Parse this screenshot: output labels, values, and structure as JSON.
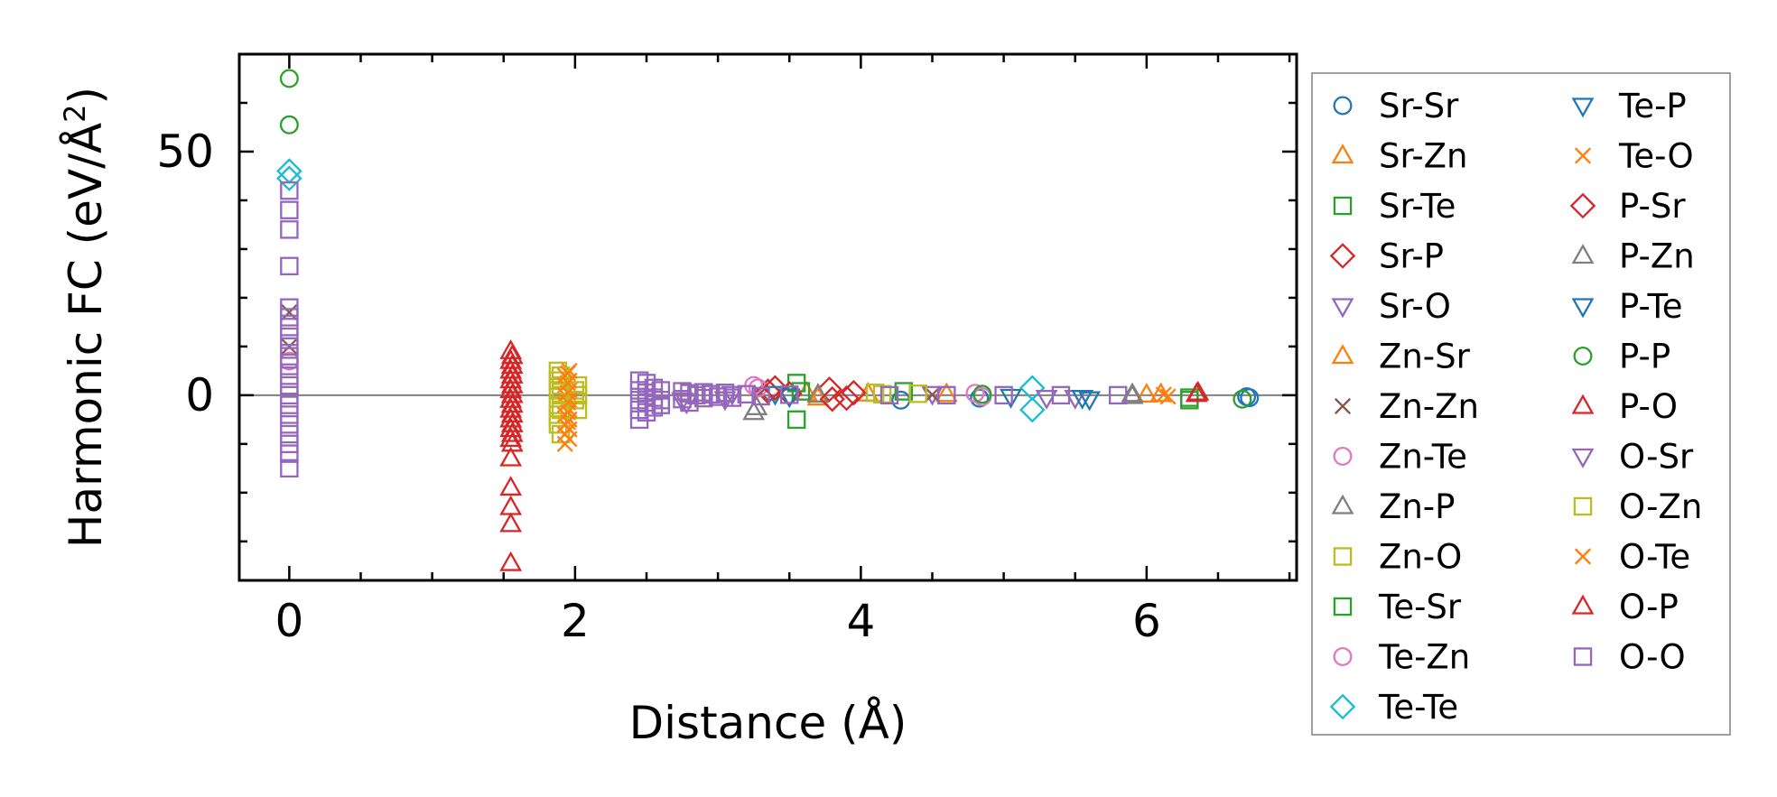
{
  "chart_data": {
    "type": "scatter",
    "title": "",
    "xlabel": "Distance (Å)",
    "ylabel": "Harmonic FC (eV/Å²)",
    "ylabel_parts": {
      "main": "Harmonic FC (eV/Å",
      "sup": "2",
      "close": ")"
    },
    "xlim": [
      -0.35,
      7.05
    ],
    "ylim": [
      -38,
      70
    ],
    "x_ticks": [
      0,
      2,
      4,
      6
    ],
    "y_ticks": [
      0,
      50
    ],
    "grid": false,
    "legend_location": "outside right",
    "reference_line_y": 0,
    "series": [
      {
        "name": "Sr-Sr",
        "color": "#1f77b4",
        "marker": "circle",
        "points": [
          [
            4.28,
            -1
          ],
          [
            4.83,
            -0.6
          ],
          [
            6.72,
            -0.5
          ],
          [
            6.7,
            -0.3
          ]
        ]
      },
      {
        "name": "Sr-Zn",
        "color": "#ff7f0e",
        "marker": "triangle-up",
        "points": [
          [
            3.62,
            0.5
          ],
          [
            4.05,
            0.3
          ],
          [
            6.1,
            0.2
          ]
        ]
      },
      {
        "name": "Sr-Te",
        "color": "#2ca02c",
        "marker": "square",
        "points": [
          [
            3.55,
            2.5
          ],
          [
            3.55,
            -5
          ],
          [
            4.3,
            0.8
          ],
          [
            6.3,
            -0.5
          ]
        ]
      },
      {
        "name": "Sr-P",
        "color": "#d62728",
        "marker": "diamond",
        "points": [
          [
            3.35,
            0.8
          ],
          [
            3.5,
            0.3
          ],
          [
            3.78,
            1.2
          ],
          [
            3.9,
            -0.6
          ]
        ]
      },
      {
        "name": "Sr-O",
        "color": "#9467bd",
        "marker": "triangle-down",
        "points": [
          [
            2.75,
            -1
          ],
          [
            3.05,
            -0.8
          ],
          [
            4.5,
            0.3
          ],
          [
            5.5,
            -0.5
          ]
        ]
      },
      {
        "name": "Zn-Sr",
        "color": "#ff7f0e",
        "marker": "triangle-up",
        "points": [
          [
            3.7,
            -0.5
          ],
          [
            4.6,
            0.2
          ],
          [
            6.0,
            0.1
          ]
        ]
      },
      {
        "name": "Zn-Zn",
        "color": "#8c564b",
        "marker": "x",
        "points": [
          [
            0,
            17
          ],
          [
            0,
            10
          ],
          [
            3.3,
            0.5
          ],
          [
            4.5,
            0.1
          ]
        ]
      },
      {
        "name": "Zn-Te",
        "color": "#e377c2",
        "marker": "circle",
        "points": [
          [
            0,
            7
          ],
          [
            3.25,
            2
          ],
          [
            4.8,
            0.4
          ]
        ]
      },
      {
        "name": "Zn-P",
        "color": "#7f7f7f",
        "marker": "triangle-up",
        "points": [
          [
            3.25,
            -3.5
          ],
          [
            3.7,
            0.1
          ],
          [
            5.9,
            0.2
          ]
        ]
      },
      {
        "name": "Zn-O",
        "color": "#bcbd22",
        "marker": "square",
        "points": [
          [
            1.88,
            5
          ],
          [
            1.88,
            3
          ],
          [
            1.88,
            1
          ],
          [
            1.88,
            -2
          ],
          [
            1.88,
            -4
          ],
          [
            1.88,
            -6
          ],
          [
            1.9,
            -8
          ],
          [
            2.02,
            2
          ],
          [
            2.02,
            0
          ],
          [
            2.02,
            -3
          ],
          [
            4.1,
            0.5
          ],
          [
            4.4,
            0.3
          ]
        ]
      },
      {
        "name": "Te-Sr",
        "color": "#2ca02c",
        "marker": "square",
        "points": [
          [
            3.58,
            0.8
          ],
          [
            6.3,
            -1
          ]
        ]
      },
      {
        "name": "Te-Zn",
        "color": "#e377c2",
        "marker": "circle",
        "points": [
          [
            3.28,
            1.5
          ],
          [
            4.85,
            -0.3
          ]
        ]
      },
      {
        "name": "Te-Te",
        "color": "#17becf",
        "marker": "diamond",
        "points": [
          [
            0,
            46
          ],
          [
            0,
            44.5
          ],
          [
            5.2,
            1.5
          ],
          [
            5.2,
            -3
          ]
        ]
      },
      {
        "name": "Te-P",
        "color": "#1f77b4",
        "marker": "triangle-down",
        "points": [
          [
            3.4,
            0.3
          ],
          [
            5.05,
            -0.3
          ],
          [
            5.6,
            -0.8
          ]
        ]
      },
      {
        "name": "Te-O",
        "color": "#ff7f0e",
        "marker": "x",
        "points": [
          [
            1.93,
            -10
          ],
          [
            1.93,
            -8
          ],
          [
            1.93,
            -6
          ],
          [
            1.93,
            -4
          ],
          [
            1.93,
            -2
          ],
          [
            1.93,
            0
          ],
          [
            1.93,
            2
          ],
          [
            1.93,
            4
          ],
          [
            1.96,
            -9
          ],
          [
            1.96,
            -7
          ],
          [
            1.96,
            -5
          ],
          [
            1.96,
            -3
          ],
          [
            1.96,
            -1
          ],
          [
            1.96,
            1
          ],
          [
            1.96,
            3
          ],
          [
            1.96,
            5
          ],
          [
            6.15,
            -0.3
          ]
        ]
      },
      {
        "name": "P-Sr",
        "color": "#d62728",
        "marker": "diamond",
        "points": [
          [
            3.4,
            1.5
          ],
          [
            3.8,
            -0.8
          ],
          [
            3.95,
            0.5
          ]
        ]
      },
      {
        "name": "P-Zn",
        "color": "#7f7f7f",
        "marker": "triangle-up",
        "points": [
          [
            3.27,
            -2.5
          ],
          [
            5.9,
            -0.2
          ]
        ]
      },
      {
        "name": "P-Te",
        "color": "#1f77b4",
        "marker": "triangle-down",
        "points": [
          [
            3.5,
            -0.2
          ],
          [
            5.55,
            -0.5
          ]
        ]
      },
      {
        "name": "P-P",
        "color": "#2ca02c",
        "marker": "circle",
        "points": [
          [
            0,
            65
          ],
          [
            0,
            55.5
          ],
          [
            4.85,
            0.2
          ],
          [
            6.67,
            -0.8
          ]
        ]
      },
      {
        "name": "P-O",
        "color": "#d62728",
        "marker": "triangle-up",
        "points": [
          [
            1.55,
            9
          ],
          [
            1.55,
            7
          ],
          [
            1.55,
            5
          ],
          [
            1.55,
            3
          ],
          [
            1.55,
            1
          ],
          [
            1.55,
            -1
          ],
          [
            1.55,
            -3
          ],
          [
            1.55,
            -5
          ],
          [
            1.55,
            -7
          ],
          [
            1.55,
            -9
          ],
          [
            1.55,
            -13
          ],
          [
            1.55,
            -19
          ],
          [
            1.55,
            -23
          ],
          [
            1.55,
            -26.5
          ],
          [
            1.55,
            -34.5
          ],
          [
            6.35,
            0.2
          ]
        ]
      },
      {
        "name": "O-Sr",
        "color": "#9467bd",
        "marker": "triangle-down",
        "points": [
          [
            2.78,
            -1.5
          ],
          [
            3.1,
            0.3
          ],
          [
            5.3,
            -0.5
          ]
        ]
      },
      {
        "name": "O-Zn",
        "color": "#bcbd22",
        "marker": "square",
        "points": [
          [
            1.9,
            4
          ],
          [
            1.9,
            2
          ],
          [
            1.9,
            0
          ],
          [
            1.9,
            -3
          ],
          [
            2.0,
            1
          ],
          [
            2.0,
            -1
          ],
          [
            4.15,
            0.2
          ]
        ]
      },
      {
        "name": "O-Te",
        "color": "#ff7f0e",
        "marker": "x",
        "points": [
          [
            1.95,
            4.5
          ],
          [
            1.95,
            2.5
          ],
          [
            1.95,
            0.5
          ],
          [
            1.95,
            -1.5
          ],
          [
            1.95,
            -3.5
          ],
          [
            1.95,
            -5.5
          ],
          [
            6.12,
            0.1
          ]
        ]
      },
      {
        "name": "O-P",
        "color": "#d62728",
        "marker": "triangle-up",
        "points": [
          [
            1.56,
            8
          ],
          [
            1.56,
            6
          ],
          [
            1.56,
            4
          ],
          [
            1.56,
            2
          ],
          [
            1.56,
            0
          ],
          [
            1.56,
            -2
          ],
          [
            1.56,
            -4
          ],
          [
            1.56,
            -6
          ],
          [
            1.56,
            -8
          ],
          [
            1.56,
            -10
          ],
          [
            6.36,
            0.5
          ]
        ]
      },
      {
        "name": "O-O",
        "color": "#9467bd",
        "marker": "square",
        "points": [
          [
            0,
            42
          ],
          [
            0,
            38
          ],
          [
            0,
            34
          ],
          [
            0,
            26.5
          ],
          [
            0,
            18
          ],
          [
            0,
            16
          ],
          [
            0,
            14
          ],
          [
            0,
            12
          ],
          [
            0,
            10
          ],
          [
            0,
            8
          ],
          [
            0,
            6
          ],
          [
            0,
            4
          ],
          [
            0,
            2
          ],
          [
            0,
            0
          ],
          [
            0,
            -2
          ],
          [
            0,
            -4
          ],
          [
            0,
            -6
          ],
          [
            0,
            -8
          ],
          [
            0,
            -10
          ],
          [
            0,
            -12
          ],
          [
            0,
            -15
          ],
          [
            2.45,
            3
          ],
          [
            2.45,
            1
          ],
          [
            2.45,
            -1
          ],
          [
            2.45,
            -3
          ],
          [
            2.45,
            -5
          ],
          [
            2.5,
            2.5
          ],
          [
            2.5,
            0.5
          ],
          [
            2.5,
            -1.5
          ],
          [
            2.5,
            -3.5
          ],
          [
            2.55,
            1.5
          ],
          [
            2.55,
            -0.5
          ],
          [
            2.55,
            -2.5
          ],
          [
            2.6,
            1
          ],
          [
            2.6,
            -1
          ],
          [
            2.6,
            -2
          ],
          [
            2.75,
            0.8
          ],
          [
            2.75,
            -0.8
          ],
          [
            2.8,
            0.4
          ],
          [
            2.8,
            -1.5
          ],
          [
            2.85,
            0
          ],
          [
            2.9,
            0.6
          ],
          [
            2.9,
            -0.6
          ],
          [
            2.95,
            0.2
          ],
          [
            3.0,
            -0.3
          ],
          [
            3.05,
            0.5
          ],
          [
            3.1,
            -0.5
          ],
          [
            3.2,
            0.2
          ],
          [
            3.3,
            -0.2
          ],
          [
            3.5,
            0.1
          ],
          [
            4.2,
            0
          ],
          [
            4.6,
            0
          ],
          [
            5.0,
            0
          ],
          [
            5.4,
            0
          ],
          [
            5.8,
            0
          ]
        ]
      }
    ]
  }
}
